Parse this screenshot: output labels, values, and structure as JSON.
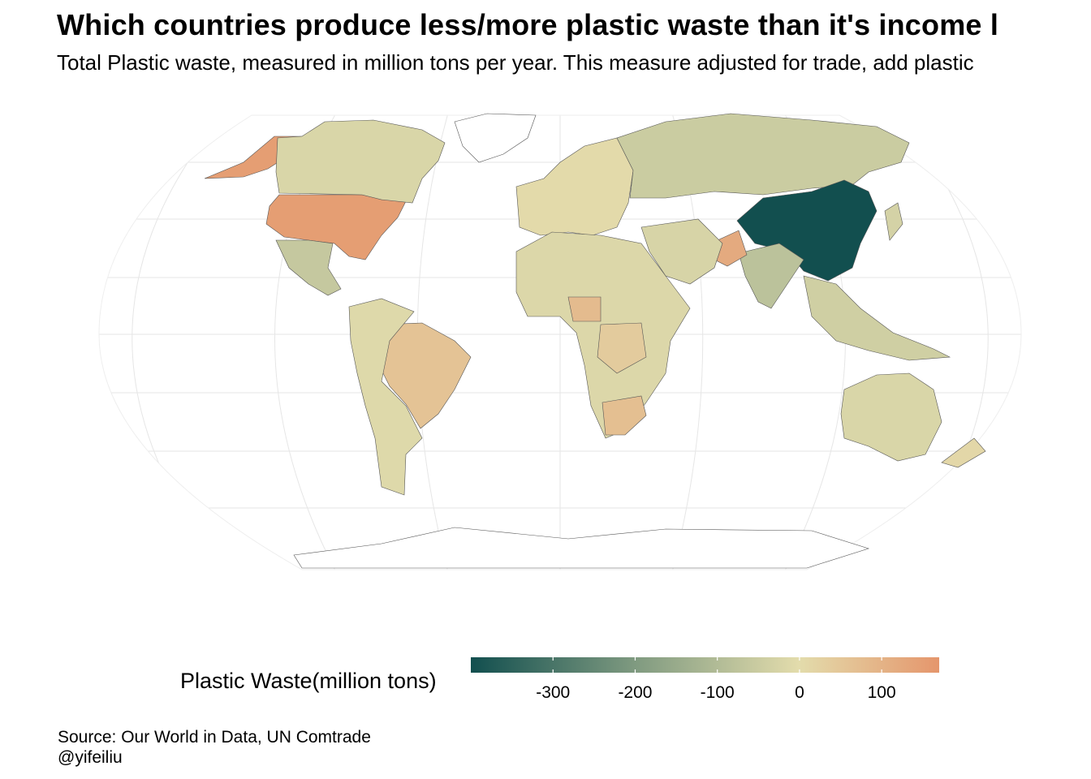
{
  "title": "Which countries produce less/more plastic waste than it's income l",
  "subtitle": "Total Plastic waste, measured in million tons per year. This measure adjusted for trade, add plastic",
  "legend": {
    "title": "Plastic Waste(million tons)",
    "ticks": [
      {
        "label": "-300",
        "value": -300
      },
      {
        "label": "-200",
        "value": -200
      },
      {
        "label": "-100",
        "value": -100
      },
      {
        "label": "0",
        "value": 0
      },
      {
        "label": "100",
        "value": 100
      }
    ],
    "range": [
      -400,
      170
    ],
    "colors": {
      "low": "#124f4f",
      "mid_low": "#7f9a80",
      "mid": "#e3dcac",
      "high": "#e5966c"
    }
  },
  "caption": {
    "source": "Source: Our World in Data, UN Comtrade",
    "author": "@yifeiliu"
  },
  "map_colors": {
    "ocean_grid": "#e9e9e9",
    "border": "#555555",
    "no_data": "#ffffff"
  },
  "regions": [
    {
      "name": "United States",
      "value": 150
    },
    {
      "name": "Alaska",
      "value": 150
    },
    {
      "name": "Canada",
      "value": -20
    },
    {
      "name": "Mexico",
      "value": -60
    },
    {
      "name": "Brazil",
      "value": 60
    },
    {
      "name": "South America",
      "value": -10
    },
    {
      "name": "Europe",
      "value": 5
    },
    {
      "name": "Russia",
      "value": -50
    },
    {
      "name": "China",
      "value": -400
    },
    {
      "name": "India",
      "value": -80
    },
    {
      "name": "Pakistan",
      "value": 120
    },
    {
      "name": "Africa",
      "value": -15
    },
    {
      "name": "Nigeria",
      "value": 80
    },
    {
      "name": "DR Congo",
      "value": 40
    },
    {
      "name": "South Africa",
      "value": 70
    },
    {
      "name": "Middle East",
      "value": -25
    },
    {
      "name": "Australia",
      "value": -20
    },
    {
      "name": "Southeast Asia",
      "value": -40
    },
    {
      "name": "Japan",
      "value": -30
    },
    {
      "name": "New Zealand",
      "value": 10
    }
  ]
}
